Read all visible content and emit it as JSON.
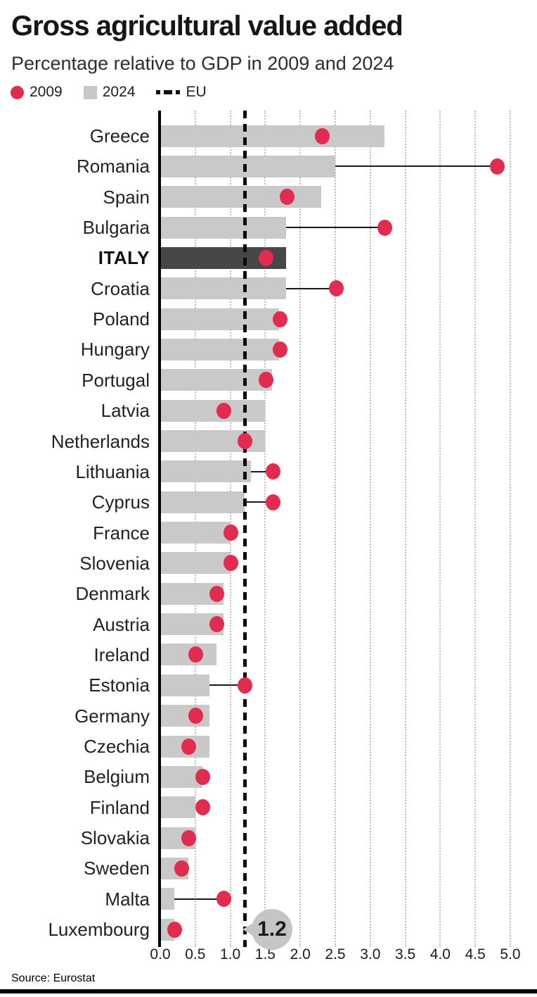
{
  "header": {
    "title": "Gross agricultural value added",
    "subtitle": "Percentage relative to GDP in 2009 and 2024"
  },
  "legend": {
    "items": [
      {
        "label": "2009",
        "marker": "dot-icon",
        "color": "#e22c4f"
      },
      {
        "label": "2024",
        "marker": "square-icon",
        "color": "#c9c9c9"
      },
      {
        "label": "EU",
        "marker": "dashed-line-icon",
        "color": "#111111"
      }
    ]
  },
  "chart_data": {
    "type": "bar",
    "variant": "horizontal bars (2024) with lollipop dots (2009) and EU reference line",
    "title": "Gross agricultural value added",
    "subtitle": "Percentage relative to GDP in 2009 and 2024",
    "categories": [
      "Greece",
      "Romania",
      "Spain",
      "Bulgaria",
      "ITALY",
      "Croatia",
      "Poland",
      "Hungary",
      "Portugal",
      "Latvia",
      "Netherlands",
      "Lithuania",
      "Cyprus",
      "France",
      "Slovenia",
      "Denmark",
      "Austria",
      "Ireland",
      "Estonia",
      "Germany",
      "Czechia",
      "Belgium",
      "Finland",
      "Slovakia",
      "Sweden",
      "Malta",
      "Luxembourg"
    ],
    "series": [
      {
        "name": "2009",
        "style": "dot",
        "values": [
          2.3,
          4.8,
          1.8,
          3.2,
          1.5,
          2.5,
          1.7,
          1.7,
          1.5,
          0.9,
          1.2,
          1.6,
          1.6,
          1.0,
          1.0,
          0.8,
          0.8,
          0.5,
          1.2,
          0.5,
          0.4,
          0.6,
          0.6,
          0.4,
          0.3,
          0.9,
          0.2
        ]
      },
      {
        "name": "2024",
        "style": "bar",
        "values": [
          3.2,
          2.5,
          2.3,
          1.8,
          1.8,
          1.8,
          1.7,
          1.7,
          1.6,
          1.5,
          1.5,
          1.3,
          1.2,
          1.0,
          1.0,
          0.9,
          0.9,
          0.8,
          0.7,
          0.7,
          0.7,
          0.6,
          0.5,
          0.5,
          0.4,
          0.2,
          0.2
        ]
      }
    ],
    "eu_reference": 1.2,
    "eu_reference_label": "1.2",
    "highlight_category": "ITALY",
    "xlim": [
      0,
      5
    ],
    "x_ticks": [
      "0.0",
      "0.5",
      "1.0",
      "1.5",
      "2.0",
      "2.5",
      "3.0",
      "3.5",
      "4.0",
      "4.5",
      "5.0"
    ],
    "grid": "vertical dotted gridlines every 0.5",
    "legend_position": "top-left"
  },
  "colors": {
    "dot_2009": "#e22c4f",
    "bar_2024": "#c9c9c9",
    "bar_highlight": "#474747",
    "eu_line": "#0b0b0b",
    "callout_bubble": "#c5c5c5",
    "gridline": "#bdbdbd"
  },
  "footer": {
    "source": "Source: Eurostat"
  }
}
